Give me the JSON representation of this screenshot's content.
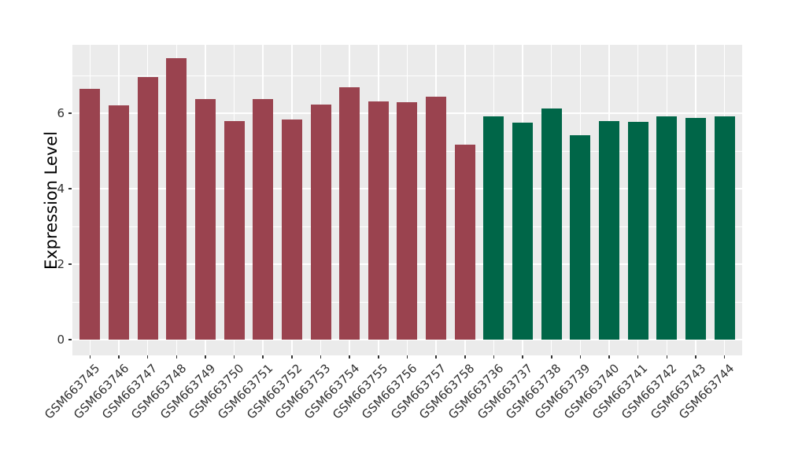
{
  "figure": {
    "background": "#FFFFFF",
    "panel_background": "#EBEBEB",
    "gridline_color": "#FFFFFF",
    "tick_color": "#333333",
    "axis_text_color": "#303030",
    "axis_title_color": "#000000"
  },
  "chart_data": {
    "type": "bar",
    "title": "",
    "xlabel": "",
    "ylabel": "Expression Level",
    "ylim": [
      0,
      7.81
    ],
    "yticks": [
      0,
      2,
      4,
      6
    ],
    "minor_gridlines": [
      1,
      3,
      5,
      7
    ],
    "grid": true,
    "legend_position": "none",
    "x_label_angle": 45,
    "categories": [
      "GSM663745",
      "GSM663746",
      "GSM663747",
      "GSM663748",
      "GSM663749",
      "GSM663750",
      "GSM663751",
      "GSM663752",
      "GSM663753",
      "GSM663754",
      "GSM663755",
      "GSM663756",
      "GSM663757",
      "GSM663758",
      "GSM663736",
      "GSM663737",
      "GSM663738",
      "GSM663739",
      "GSM663740",
      "GSM663741",
      "GSM663742",
      "GSM663743",
      "GSM663744"
    ],
    "values": [
      6.65,
      6.21,
      6.96,
      7.45,
      6.37,
      5.79,
      6.37,
      5.83,
      6.22,
      6.69,
      6.31,
      6.29,
      6.43,
      5.16,
      5.92,
      5.75,
      6.12,
      5.42,
      5.8,
      5.78,
      5.91,
      5.88,
      5.91
    ],
    "bar_groups": [
      "red",
      "red",
      "red",
      "red",
      "red",
      "red",
      "red",
      "red",
      "red",
      "red",
      "red",
      "red",
      "red",
      "red",
      "green",
      "green",
      "green",
      "green",
      "green",
      "green",
      "green",
      "green",
      "green"
    ],
    "group_colors": {
      "red": "#9A434F",
      "green": "#006648"
    }
  }
}
